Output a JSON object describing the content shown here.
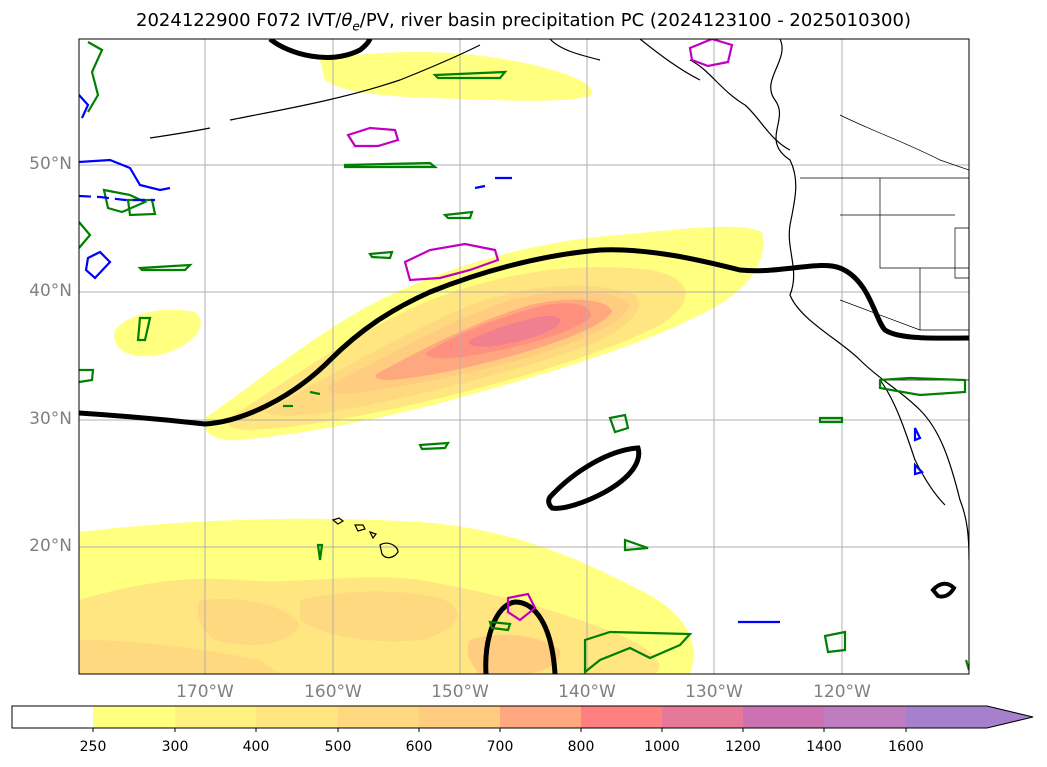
{
  "title": {
    "prefix": "2024122900 F072 IVT/",
    "theta": "θ",
    "sub": "e",
    "suffix": "/PV, river basin precipitation PC (2024123100 - 2025010300)"
  },
  "map": {
    "lat_labels": [
      "50°N",
      "40°N",
      "30°N",
      "20°N"
    ],
    "lon_labels": [
      "170°W",
      "160°W",
      "150°W",
      "140°W",
      "130°W",
      "120°W"
    ],
    "gridlines": true
  },
  "colorbar": {
    "levels": [
      "250",
      "300",
      "400",
      "500",
      "600",
      "700",
      "800",
      "1000",
      "1200",
      "1400",
      "1600"
    ],
    "colors": [
      "#ffffff",
      "#ffff80",
      "#fff280",
      "#ffe680",
      "#ffd980",
      "#ffcc80",
      "#ffa880",
      "#ff8080",
      "#e6789a",
      "#cc72b3",
      "#bf7cc0",
      "#a680cc"
    ],
    "extend": "max"
  },
  "colors": {
    "ivt_contour": "#000000",
    "pv_green": "#008000",
    "pv_magenta": "#c000c0",
    "pv_blue": "#0000ff",
    "grid": "#b0b0b0",
    "coast": "#000000"
  }
}
